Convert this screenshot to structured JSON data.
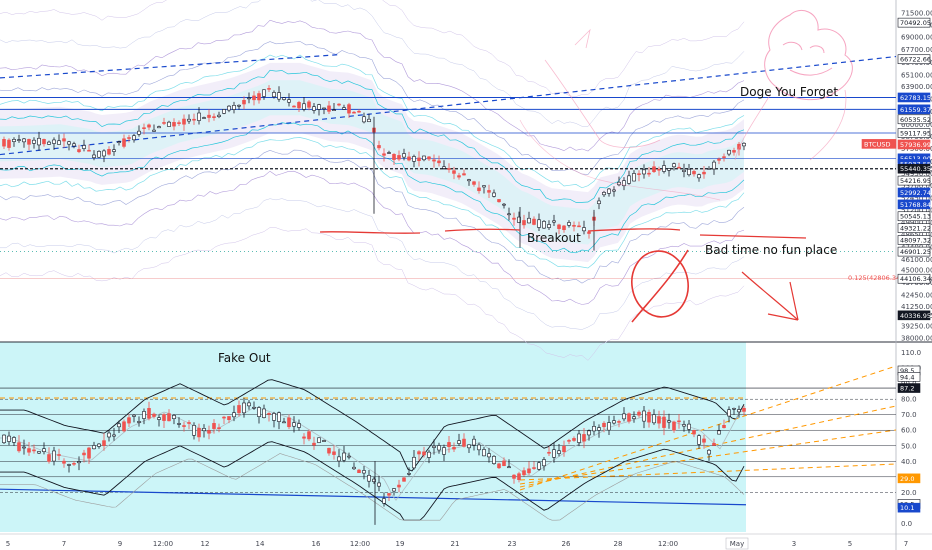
{
  "chart_data": [
    {
      "type": "candlestick",
      "panel": "price",
      "symbol_tag": "BTCUSD",
      "y_axis_ticks": [
        38000,
        39250,
        40336.95,
        41250,
        42450,
        43700,
        44106.34,
        45000,
        46100,
        47400,
        48650,
        49900,
        51200,
        52450,
        53700,
        54950,
        55440.35,
        56200,
        57500,
        58750,
        60000,
        61350,
        62600,
        63900,
        65100,
        66400,
        67700,
        69000,
        70250,
        71500
      ],
      "y_axis_ticks_display": [
        "38000.00",
        "39250.00",
        "40336.95",
        "41250.00",
        "42450.00",
        "43700.00",
        "44106.34",
        "45000.00",
        "46100.00",
        "47400.00",
        "48650.00",
        "49900.00",
        "51200.00",
        "52450.00",
        "53700.00",
        "54950.00",
        "55440.35",
        "56200.00",
        "57500.00",
        "58750.00",
        "60000.00",
        "61350.00",
        "62600.00",
        "63900.00",
        "65100.00",
        "66400.00",
        "67700.00",
        "69000.00",
        "70250.00",
        "71500.00"
      ],
      "price_tags": [
        {
          "label": "70492.05",
          "value": 70492.05,
          "color": "#131722",
          "fill": "#ffffff"
        },
        {
          "label": "66722.66",
          "value": 66722.66,
          "color": "#131722",
          "fill": "#ffffff"
        },
        {
          "label": "62783.15",
          "value": 62783.15,
          "color": "#ffffff",
          "fill": "#1848cc"
        },
        {
          "label": "61559.37",
          "value": 61559.37,
          "color": "#ffffff",
          "fill": "#1848cc"
        },
        {
          "label": "60535.52",
          "value": 60535.52,
          "color": "#131722",
          "fill": "#ffffff"
        },
        {
          "label": "59117.95",
          "value": 59117.95,
          "color": "#131722",
          "fill": "#ffffff"
        },
        {
          "label": "BTCUSD",
          "value": 58000,
          "color": "#ffffff",
          "fill": "#ef5350"
        },
        {
          "label": "57936.99",
          "value": 57936.99,
          "color": "#ffffff",
          "fill": "#ef5350"
        },
        {
          "label": "56513.90",
          "value": 56513.9,
          "color": "#ffffff",
          "fill": "#1848cc"
        },
        {
          "label": "55937.55",
          "value": 55937.55,
          "color": "#ffffff",
          "fill": "#1848cc"
        },
        {
          "label": "55440.35",
          "value": 55440.35,
          "color": "#ffffff",
          "fill": "#131722"
        },
        {
          "label": "54216.95",
          "value": 54216.95,
          "color": "#131722",
          "fill": "#ffffff"
        },
        {
          "label": "52992.74",
          "value": 52992.74,
          "color": "#ffffff",
          "fill": "#1848cc"
        },
        {
          "label": "51768.84",
          "value": 51768.84,
          "color": "#ffffff",
          "fill": "#1848cc"
        },
        {
          "label": "50545.13",
          "value": 50545.13,
          "color": "#131722",
          "fill": "#ffffff"
        },
        {
          "label": "49321.22",
          "value": 49321.22,
          "color": "#131722",
          "fill": "#ffffff"
        },
        {
          "label": "48097.32",
          "value": 48097.32,
          "color": "#131722",
          "fill": "#ffffff"
        },
        {
          "label": "46901.25",
          "value": 46901.25,
          "color": "#131722",
          "fill": "#ffffff"
        },
        {
          "label": "44106.34",
          "value": 44106.34,
          "color": "#131722",
          "fill": "#ffffff"
        },
        {
          "label": "40336.95",
          "value": 40336.95,
          "color": "#ffffff",
          "fill": "#131722"
        }
      ],
      "fib_note": "0.125(42806.34)",
      "annotations": [
        "Doge You Forget",
        "Breakout",
        "Bad time no fun place"
      ],
      "ylim": [
        38000,
        72000
      ],
      "scale": "linear",
      "grid": false,
      "colors": {
        "up": "#131722",
        "down": "#ef5350",
        "band_outer": "#7e57c2",
        "band_inner": "#26c6da",
        "trend": "#1848cc",
        "drawing": "#e53935"
      }
    },
    {
      "type": "line",
      "panel": "oscillator",
      "title": "Fake Out",
      "y_axis_ticks": [
        0,
        10,
        20,
        30,
        40,
        50,
        60,
        70,
        80,
        90,
        100,
        110
      ],
      "y_axis_ticks_display": [
        "0.0",
        "10.0",
        "20.0",
        "30.0",
        "40.0",
        "50.0",
        "60.0",
        "70.0",
        "80.0",
        "90.0",
        "100.0",
        "110.0"
      ],
      "value_tags": [
        {
          "label": "98.5",
          "value": 98.5,
          "color": "#131722",
          "fill": "#ffffff"
        },
        {
          "label": "94.4",
          "value": 94.4,
          "color": "#131722",
          "fill": "#ffffff"
        },
        {
          "label": "87.2",
          "value": 87.2,
          "color": "#ffffff",
          "fill": "#131722"
        },
        {
          "label": "29.0",
          "value": 29.0,
          "color": "#ffffff",
          "fill": "#ff9800"
        },
        {
          "label": "12.5",
          "value": 12.5,
          "color": "#131722",
          "fill": "#ffffff"
        },
        {
          "label": "10.1",
          "value": 10.1,
          "color": "#ffffff",
          "fill": "#1848cc"
        }
      ],
      "ylim": [
        -3,
        113
      ],
      "grid": false,
      "colors": {
        "highlight": "#ccf5f8",
        "up": "#131722",
        "down": "#ef5350",
        "guide": "#ff9800"
      }
    }
  ],
  "x_axis": {
    "labels": [
      "5",
      "7",
      "9",
      "12:00",
      "12",
      "14",
      "16",
      "12:00",
      "19",
      "21",
      "23",
      "26",
      "28",
      "12:00",
      "May",
      "3",
      "5",
      "7"
    ]
  }
}
